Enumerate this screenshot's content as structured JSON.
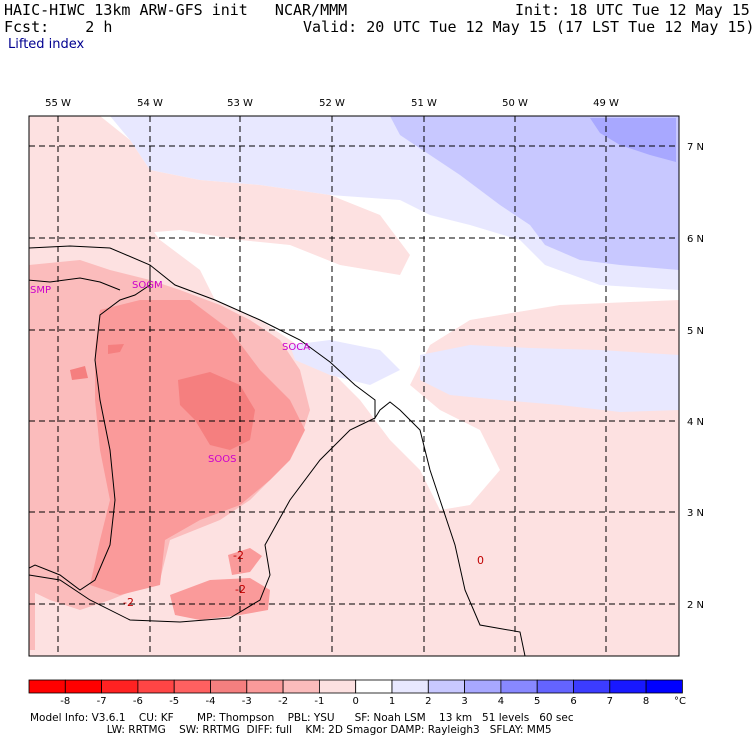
{
  "header": {
    "title": "HAIC-HIWC 13km ARW-GFS init   NCAR/MMM",
    "fcst": "Fcst:    2 h",
    "init": "Init: 18 UTC Tue 12 May 15",
    "valid": "Valid: 20 UTC Tue 12 May 15 (17 LST Tue 12 May 15)",
    "field": "Lifted index"
  },
  "map": {
    "lon_labels": [
      "55 W",
      "54 W",
      "53 W",
      "52 W",
      "51 W",
      "50 W",
      "49 W"
    ],
    "lat_labels": [
      "7 N",
      "6 N",
      "5 N",
      "4 N",
      "3 N",
      "2 N"
    ],
    "stations": [
      "SMP",
      "SOGM",
      "SOCA",
      "SOOS"
    ],
    "contour_labels": [
      "-2",
      "-2",
      "-2",
      "0"
    ]
  },
  "colorbar": {
    "labels": [
      "-8",
      "-7",
      "-6",
      "-5",
      "-4",
      "-3",
      "-2",
      "-1",
      "0",
      "1",
      "2",
      "3",
      "4",
      "5",
      "6",
      "7",
      "8"
    ],
    "unit": "°C",
    "colors": [
      "#ff0000",
      "#ff2222",
      "#ff4545",
      "#ff6060",
      "#f57f7f",
      "#fa9a9a",
      "#fbbcbc",
      "#fde1e1",
      "#ffffff",
      "#e8e8ff",
      "#c8c8ff",
      "#a8a8ff",
      "#8888ff",
      "#6464ff",
      "#3c3cff",
      "#1818ff",
      "#0000ff"
    ]
  },
  "model_info": {
    "line1": "Model Info: V3.6.1    CU: KF       MP: Thompson    PBL: YSU      SF: Noah LSM    13 km   51 levels   60 sec",
    "line2": "                       LW: RRTMG    SW: RRTMG  DIFF: full    KM: 2D Smagor DAMP: Rayleigh3   SFLAY: MM5"
  }
}
